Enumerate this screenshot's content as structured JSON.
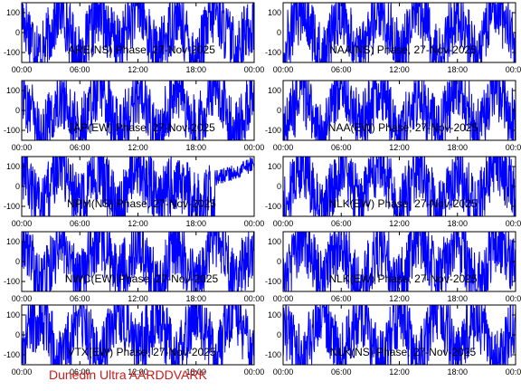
{
  "chart_data": [
    {
      "type": "line",
      "title": "ARE(NS) Phase, 27-Nov-2025",
      "x_ticks": [
        "00:00",
        "06:00",
        "12:00",
        "18:00",
        "00:00"
      ],
      "y_ticks": [
        "100",
        "0",
        "-100"
      ],
      "ylim": [
        -150,
        150
      ],
      "xlim_hours": [
        0,
        24
      ],
      "grid": false,
      "series": [
        {
          "x": [
            0,
            2,
            4,
            6,
            8,
            10,
            12,
            14,
            16,
            18,
            20,
            22,
            24
          ],
          "y": [
            90,
            -120,
            130,
            -140,
            110,
            -80,
            140,
            -130,
            100,
            -140,
            120,
            -90,
            60
          ]
        }
      ]
    },
    {
      "type": "line",
      "title": "NAA(NS) Phase, 27-Nov-2025",
      "x_ticks": [
        "00:00",
        "06:00",
        "12:00",
        "18:00",
        "00:00"
      ],
      "y_ticks": [
        "100",
        "0",
        "-100"
      ],
      "ylim": [
        -150,
        150
      ],
      "xlim_hours": [
        0,
        24
      ],
      "grid": false,
      "series": [
        {
          "x": [
            0,
            2,
            4,
            6,
            8,
            10,
            12,
            14,
            16,
            18,
            20,
            22,
            24
          ],
          "y": [
            -100,
            140,
            -140,
            120,
            -130,
            140,
            -110,
            130,
            -140,
            100,
            -120,
            140,
            -60
          ]
        }
      ]
    },
    {
      "type": "line",
      "title": "JAP(EW) Phase, 27-Nov-2025",
      "x_ticks": [
        "00:00",
        "06:00",
        "12:00",
        "18:00",
        "00:00"
      ],
      "y_ticks": [
        "100",
        "0",
        "-100"
      ],
      "ylim": [
        -150,
        150
      ],
      "xlim_hours": [
        0,
        24
      ],
      "grid": false,
      "series": [
        {
          "x": [
            0,
            2,
            4,
            6,
            8,
            10,
            12,
            14,
            16,
            18,
            20,
            22,
            24
          ],
          "y": [
            120,
            -140,
            80,
            -110,
            140,
            -120,
            90,
            -140,
            130,
            -100,
            140,
            -130,
            110
          ]
        }
      ]
    },
    {
      "type": "line",
      "title": "NAA(EW) Phase, 27-Nov-2025",
      "x_ticks": [
        "00:00",
        "06:00",
        "12:00",
        "18:00",
        "00:00"
      ],
      "y_ticks": [
        "100",
        "0",
        "-100"
      ],
      "ylim": [
        -150,
        150
      ],
      "xlim_hours": [
        0,
        24
      ],
      "grid": false,
      "series": [
        {
          "x": [
            0,
            2,
            4,
            6,
            8,
            10,
            12,
            14,
            16,
            18,
            20,
            22,
            24
          ],
          "y": [
            -120,
            110,
            -140,
            140,
            -90,
            120,
            -140,
            100,
            -130,
            140,
            -110,
            130,
            -80
          ]
        }
      ]
    },
    {
      "type": "line",
      "title": "NPM(NS) Phase, 27-Nov-2025",
      "x_ticks": [
        "00:00",
        "06:00",
        "12:00",
        "18:00",
        "00:00"
      ],
      "y_ticks": [
        "100",
        "0",
        "-100"
      ],
      "ylim": [
        -150,
        150
      ],
      "xlim_hours": [
        0,
        24
      ],
      "grid": false,
      "series": [
        {
          "x": [
            0,
            2,
            4,
            6,
            8,
            10,
            12,
            14,
            16,
            18,
            20,
            22,
            24
          ],
          "y": [
            110,
            -130,
            140,
            -100,
            90,
            -140,
            120,
            -60,
            40,
            -80,
            -40,
            20,
            110
          ]
        }
      ]
    },
    {
      "type": "line",
      "title": "NLK(EW) Phase, 27-Nov-2025",
      "x_ticks": [
        "00:00",
        "06:00",
        "12:00",
        "18:00",
        "00:00"
      ],
      "y_ticks": [
        "100",
        "0",
        "-100"
      ],
      "ylim": [
        -150,
        150
      ],
      "xlim_hours": [
        0,
        24
      ],
      "grid": false,
      "series": [
        {
          "x": [
            0,
            2,
            4,
            6,
            8,
            10,
            12,
            14,
            16,
            18,
            20,
            22,
            24
          ],
          "y": [
            -110,
            130,
            -140,
            120,
            -100,
            140,
            -130,
            110,
            -140,
            90,
            -120,
            130,
            -20
          ]
        }
      ]
    },
    {
      "type": "line",
      "title": "NWC(EW) Phase, 27-Nov-2025",
      "x_ticks": [
        "00:00",
        "06:00",
        "12:00",
        "18:00",
        "00:00"
      ],
      "y_ticks": [
        "100",
        "0",
        "-100"
      ],
      "ylim": [
        -150,
        150
      ],
      "xlim_hours": [
        0,
        24
      ],
      "grid": false,
      "series": [
        {
          "x": [
            0,
            2,
            4,
            6,
            8,
            10,
            12,
            14,
            16,
            18,
            20,
            22,
            24
          ],
          "y": [
            130,
            -140,
            110,
            -120,
            140,
            -90,
            120,
            -140,
            100,
            -130,
            140,
            -110,
            90
          ]
        }
      ]
    },
    {
      "type": "line",
      "title": "NLK(EW) Phase, 27-Nov-2025",
      "x_ticks": [
        "00:00",
        "06:00",
        "12:00",
        "18:00",
        "00:00"
      ],
      "y_ticks": [
        "100",
        "0",
        "-100"
      ],
      "ylim": [
        -150,
        150
      ],
      "xlim_hours": [
        0,
        24
      ],
      "grid": false,
      "series": [
        {
          "x": [
            0,
            2,
            4,
            6,
            8,
            10,
            12,
            14,
            16,
            18,
            20,
            22,
            24
          ],
          "y": [
            -130,
            140,
            -110,
            120,
            -140,
            100,
            -120,
            140,
            -90,
            130,
            -140,
            110,
            -40
          ]
        }
      ]
    },
    {
      "type": "line",
      "title": "VTX(EW) Phase, 27-Nov-2025",
      "x_ticks": [
        "00:00",
        "06:00",
        "12:00",
        "18:00",
        "00:00"
      ],
      "y_ticks": [
        "100",
        "0",
        "-100"
      ],
      "ylim": [
        -150,
        150
      ],
      "xlim_hours": [
        0,
        24
      ],
      "grid": false,
      "series": [
        {
          "x": [
            0,
            2,
            4,
            6,
            8,
            10,
            12,
            14,
            16,
            18,
            20,
            22,
            24
          ],
          "y": [
            -60,
            120,
            -140,
            100,
            -130,
            140,
            -80,
            110,
            -140,
            130,
            -100,
            140,
            -120
          ]
        }
      ]
    },
    {
      "type": "line",
      "title": "NLK(NS) Phase, 27-Nov-2025",
      "x_ticks": [
        "00:00",
        "06:00",
        "12:00",
        "18:00",
        "00:00"
      ],
      "y_ticks": [
        "100",
        "0",
        "-100"
      ],
      "ylim": [
        -150,
        150
      ],
      "xlim_hours": [
        0,
        24
      ],
      "grid": false,
      "series": [
        {
          "x": [
            0,
            2,
            4,
            6,
            8,
            10,
            12,
            14,
            16,
            18,
            20,
            22,
            24
          ],
          "y": [
            40,
            -130,
            140,
            -110,
            120,
            -140,
            100,
            -130,
            140,
            -90,
            110,
            -140,
            70
          ]
        }
      ]
    }
  ],
  "footer": {
    "label": "Dunedin Ultra AARDDVARK",
    "color": "#d11a1a"
  },
  "colors": {
    "trace": "#0000ff",
    "axes": "#000000",
    "background": "#ffffff"
  }
}
